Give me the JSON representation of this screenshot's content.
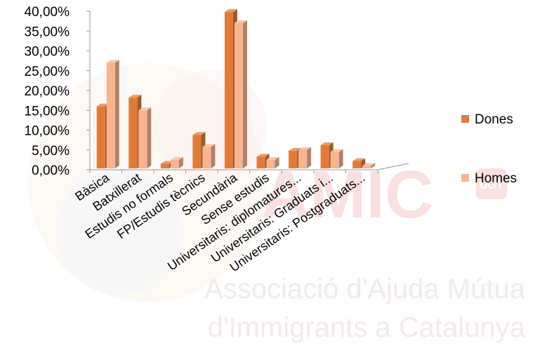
{
  "watermark": {
    "logo_text": "AMIC",
    "badge_text": "UGT",
    "line1": "Associació d'Ajuda Mútua",
    "line2": "d'Immigrants a Catalunya"
  },
  "chart_data": {
    "type": "bar",
    "title": "",
    "xlabel": "",
    "ylabel": "",
    "ylim": [
      0,
      40
    ],
    "y_ticks": [
      "0,00%",
      "5,00%",
      "10,00%",
      "15,00%",
      "20,00%",
      "25,00%",
      "30,00%",
      "35,00%",
      "40,00%"
    ],
    "categories": [
      "Bàsica",
      "Batxillerat",
      "Estudis no formals",
      "FP/Estudis tècnics",
      "Secundària",
      "Sense estudis",
      "Universitaris: diplomatures...",
      "Universitaris: Graduats i...",
      "Universitaris: Postgraduats..."
    ],
    "series": [
      {
        "name": "Dones",
        "color": "#e07b39",
        "values": [
          16.0,
          18.2,
          1.5,
          8.8,
          39.8,
          3.3,
          4.8,
          6.2,
          2.2
        ]
      },
      {
        "name": "Homes",
        "color": "#f7b48e",
        "values": [
          27.0,
          15.0,
          2.5,
          5.8,
          37.0,
          2.5,
          5.0,
          4.5,
          1.0
        ]
      }
    ],
    "grid": false,
    "legend_position": "right",
    "bar_style": "3d"
  }
}
